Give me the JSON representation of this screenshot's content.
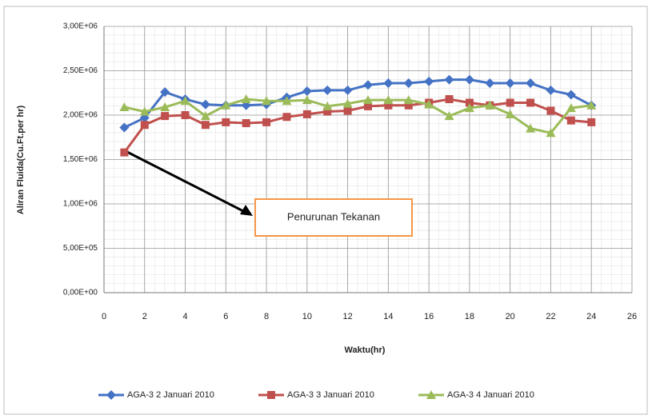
{
  "chart_data": {
    "type": "line",
    "y_label": "Aliran Fluida(Cu.Ft.per hr)",
    "x_label": "Waktu(hr)",
    "annotation": "Penurunan Tekanan",
    "x": [
      1,
      2,
      3,
      4,
      5,
      6,
      7,
      8,
      9,
      10,
      11,
      12,
      13,
      14,
      15,
      16,
      17,
      18,
      19,
      20,
      21,
      22,
      23,
      24
    ],
    "series": [
      {
        "name": "AGA-3 2 Januari 2010",
        "color": "#4472c4",
        "marker": "diamond",
        "values": [
          1860000,
          1970000,
          2260000,
          2180000,
          2120000,
          2110000,
          2110000,
          2120000,
          2200000,
          2270000,
          2280000,
          2280000,
          2340000,
          2360000,
          2360000,
          2380000,
          2400000,
          2400000,
          2360000,
          2360000,
          2360000,
          2280000,
          2230000,
          2110000
        ]
      },
      {
        "name": "AGA-3 3 Januari 2010",
        "color": "#c0504d",
        "marker": "square",
        "values": [
          1580000,
          1890000,
          1990000,
          2000000,
          1890000,
          1920000,
          1910000,
          1920000,
          1980000,
          2010000,
          2040000,
          2050000,
          2100000,
          2110000,
          2110000,
          2140000,
          2180000,
          2140000,
          2110000,
          2140000,
          2140000,
          2050000,
          1940000,
          1920000
        ]
      },
      {
        "name": "AGA-3 4 Januari 2010",
        "color": "#9bbb59",
        "marker": "triangle",
        "values": [
          2090000,
          2040000,
          2090000,
          2160000,
          1990000,
          2110000,
          2180000,
          2160000,
          2160000,
          2170000,
          2100000,
          2130000,
          2170000,
          2170000,
          2170000,
          2120000,
          1990000,
          2080000,
          2110000,
          2010000,
          1850000,
          1800000,
          2080000,
          2110000
        ]
      }
    ],
    "xlim": [
      0,
      26
    ],
    "xticks": [
      0,
      2,
      4,
      6,
      8,
      10,
      12,
      14,
      16,
      18,
      20,
      22,
      24,
      26
    ],
    "ylim": [
      0,
      3000000
    ],
    "yticks": [
      {
        "value": 0,
        "label": "0,00E+00"
      },
      {
        "value": 500000,
        "label": "5,00E+05"
      },
      {
        "value": 1000000,
        "label": "1,00E+06"
      },
      {
        "value": 1500000,
        "label": "1,50E+06"
      },
      {
        "value": 2000000,
        "label": "2,00E+06"
      },
      {
        "value": 2500000,
        "label": "2,50E+06"
      },
      {
        "value": 3000000,
        "label": "3,00E+06"
      }
    ],
    "grid": true,
    "legend": "bottom"
  }
}
